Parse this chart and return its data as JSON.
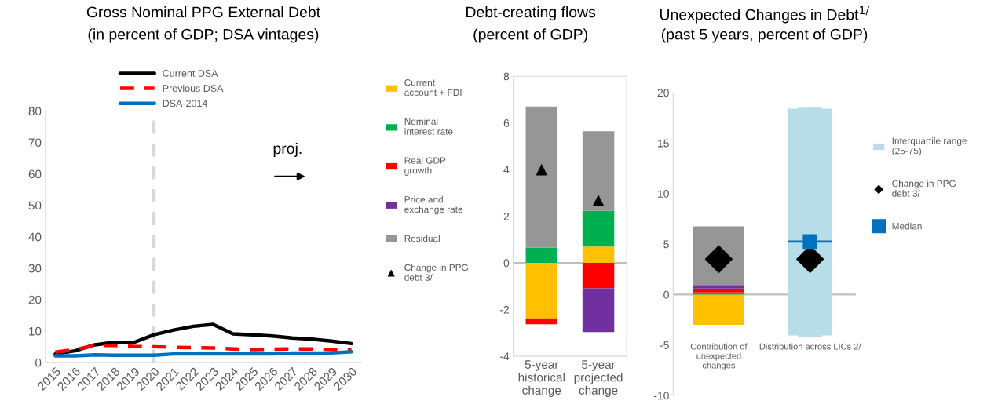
{
  "chart_data": [
    {
      "type": "line",
      "title": "Gross Nominal PPG External Debt",
      "subtitle": "(in percent of GDP; DSA vintages)",
      "x": [
        2015,
        2016,
        2017,
        2018,
        2019,
        2020,
        2021,
        2022,
        2023,
        2024,
        2025,
        2026,
        2027,
        2028,
        2029,
        2030
      ],
      "series": [
        {
          "name": "Current DSA",
          "color": "#000000",
          "line_style": "solid",
          "values": [
            2.7,
            3.7,
            5.6,
            6.4,
            6.4,
            8.8,
            10.3,
            11.5,
            12.1,
            9.1,
            8.8,
            8.4,
            7.8,
            7.4,
            6.8,
            6.0
          ]
        },
        {
          "name": "Previous DSA",
          "color": "#ff0000",
          "line_style": "dashed",
          "values": [
            3.3,
            4.1,
            5.4,
            5.4,
            5.1,
            5.0,
            4.8,
            4.7,
            4.6,
            4.3,
            4.1,
            4.2,
            4.3,
            4.3,
            4.1,
            3.9
          ]
        },
        {
          "name": "DSA-2014",
          "color": "#0070c0",
          "line_style": "solid",
          "values": [
            2.1,
            2.1,
            2.4,
            2.3,
            2.3,
            2.3,
            2.7,
            2.7,
            2.7,
            2.7,
            2.7,
            2.7,
            3.0,
            3.0,
            3.0,
            3.4
          ]
        }
      ],
      "xlim": [
        2014.5,
        2030.5
      ],
      "xticks": [
        2015,
        2016,
        2017,
        2018,
        2019,
        2020,
        2021,
        2022,
        2023,
        2024,
        2025,
        2026,
        2027,
        2028,
        2029,
        2030
      ],
      "ylim": [
        0,
        80
      ],
      "yticks": [
        0,
        10,
        20,
        30,
        40,
        50,
        60,
        70,
        80
      ],
      "ref_lines": [
        {
          "axis": "x",
          "value": 2020,
          "color": "#d9d9d9",
          "line_style": "dashed"
        }
      ],
      "annotations": [
        "proj."
      ],
      "legend": "top"
    },
    {
      "type": "bar",
      "title": "Debt-creating flows",
      "subtitle": "(percent of GDP)",
      "stacked": true,
      "categories": [
        "5-year\nhistorical\nchange",
        "5-year\nprojected\nchange"
      ],
      "series": [
        {
          "name": "Current\naccount + FDI",
          "color": "#ffc000",
          "values": [
            -2.38,
            0.7
          ]
        },
        {
          "name": "Nominal\ninterest rate",
          "color": "#00b050",
          "values": [
            0.65,
            1.53
          ]
        },
        {
          "name": "Real GDP\ngrowth",
          "color": "#ff0000",
          "values": [
            -0.25,
            -1.09
          ]
        },
        {
          "name": "Price and\nexchange rate",
          "color": "#7030a0",
          "values": [
            0,
            -1.88
          ]
        },
        {
          "name": "Residual",
          "color": "#969696",
          "values": [
            6.05,
            3.41
          ]
        },
        {
          "name": "Change in PPG\ndebt 3/",
          "type": "scatter",
          "marker": "triangle",
          "color": "#000000",
          "values": [
            4.0,
            2.68
          ]
        }
      ],
      "ylim": [
        -4,
        8
      ],
      "yticks": [
        -4,
        -2,
        0,
        2,
        4,
        6,
        8
      ],
      "legend": "left"
    },
    {
      "type": "bar",
      "title": "Unexpected Changes in Debt$^{1/}$",
      "subtitle": "(past 5 years, percent of GDP)",
      "stacked": true,
      "categories": [
        "Contribution of\nunexpected\nchanges",
        "Distribution across LICs 2/"
      ],
      "series": [
        {
          "color": "#ffc000",
          "values": [
            -3.0,
            null
          ]
        },
        {
          "color": "#00b050",
          "values": [
            0.2,
            null
          ]
        },
        {
          "color": "#ff0000",
          "values": [
            0.4,
            null
          ]
        },
        {
          "color": "#7030a0",
          "values": [
            0.35,
            null
          ]
        },
        {
          "color": "#969696",
          "values": [
            5.8,
            null
          ]
        },
        {
          "name": "Interquartile range\n(25-75)",
          "type": "box",
          "color": "#b7dee8",
          "boxes": [
            null,
            {
              "low": -4.05,
              "q1": -4.05,
              "median": 5.25,
              "q3": 18.4,
              "high": 18.4
            }
          ]
        },
        {
          "name": "Change in PPG\ndebt 3/",
          "type": "scatter",
          "marker": "diamond",
          "color": "#000000",
          "values": [
            3.5,
            3.5
          ]
        },
        {
          "name": "Median",
          "type": "scatter",
          "marker": "square",
          "color": "#0070c0",
          "values": [
            null,
            5.25
          ]
        }
      ],
      "ylim": [
        -10,
        20
      ],
      "yticks": [
        -10,
        -5,
        0,
        5,
        10,
        15,
        20
      ],
      "legend": "right"
    }
  ]
}
